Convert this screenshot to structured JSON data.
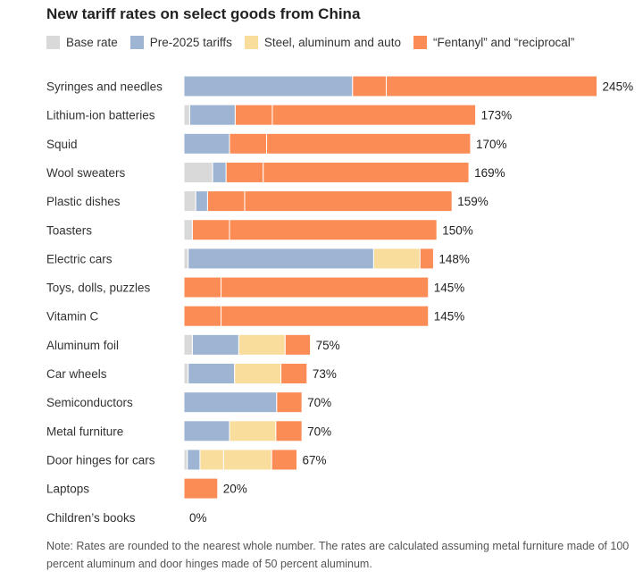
{
  "title": "New tariff rates on select goods from China",
  "legend": [
    {
      "label": "Base rate",
      "color": "#d9d9d9"
    },
    {
      "label": "Pre-2025 tariffs",
      "color": "#9db4d3"
    },
    {
      "label": "Steel, aluminum and auto",
      "color": "#f9dd9c"
    },
    {
      "label": "“Fentanyl” and “reciprocal”",
      "color": "#fb8c56"
    }
  ],
  "note": "Note: Rates are rounded to the nearest whole number. The rates are calculated assuming metal furniture made of 100 percent aluminum and door hinges made of 50 percent aluminum.",
  "chart_data": {
    "type": "bar",
    "orientation": "horizontal",
    "stacked": true,
    "title": "New tariff rates on select goods from China",
    "categories": [
      "Syringes and needles",
      "Lithium-ion batteries",
      "Squid",
      "Wool sweaters",
      "Plastic dishes",
      "Toasters",
      "Electric cars",
      "Toys, dolls, puzzles",
      "Vitamin C",
      "Aluminum foil",
      "Car wheels",
      "Semiconductors",
      "Metal furniture",
      "Door hinges for cars",
      "Laptops",
      "Children’s books"
    ],
    "totals": [
      "245%",
      "173%",
      "170%",
      "169%",
      "159%",
      "150%",
      "148%",
      "145%",
      "145%",
      "75%",
      "73%",
      "70%",
      "70%",
      "67%",
      "20%",
      "0%"
    ],
    "series": [
      {
        "name": "Base rate",
        "color": "#d9d9d9",
        "values": [
          0,
          3.4,
          0,
          17,
          7,
          5,
          2.5,
          0,
          0,
          5,
          2.5,
          0,
          0,
          2,
          0,
          0
        ]
      },
      {
        "name": "Pre-2025 tariffs",
        "color": "#9db4d3",
        "values": [
          100,
          27,
          27,
          8,
          7,
          0,
          110,
          0,
          0,
          27.5,
          27.5,
          55,
          27,
          7.5,
          0,
          0
        ]
      },
      {
        "name": "Steel, aluminum and auto",
        "color": "#f9dd9c",
        "values": [
          0,
          0,
          0,
          0,
          0,
          0,
          27.5,
          0,
          0,
          27.5,
          27.5,
          0,
          27.5,
          42.5,
          0,
          0
        ]
      },
      {
        "name": "“Fentanyl” and “reciprocal”",
        "color": "#fb8c56",
        "values": [
          145,
          142.6,
          143,
          144,
          145,
          145,
          8,
          145,
          145,
          15,
          15.5,
          15,
          15.5,
          15,
          20,
          0
        ]
      }
    ],
    "segments": [
      [
        [
          2,
          100
        ],
        [
          4,
          20
        ],
        [
          4,
          125
        ]
      ],
      [
        [
          1,
          3.4
        ],
        [
          2,
          27
        ],
        [
          4,
          22
        ],
        [
          4,
          120.6
        ]
      ],
      [
        [
          2,
          27
        ],
        [
          4,
          22
        ],
        [
          4,
          121
        ]
      ],
      [
        [
          1,
          17
        ],
        [
          2,
          8
        ],
        [
          4,
          22
        ],
        [
          4,
          122
        ]
      ],
      [
        [
          1,
          7
        ],
        [
          2,
          7
        ],
        [
          4,
          22
        ],
        [
          4,
          123
        ]
      ],
      [
        [
          1,
          5
        ],
        [
          4,
          22
        ],
        [
          4,
          123
        ]
      ],
      [
        [
          1,
          2.5
        ],
        [
          2,
          110
        ],
        [
          3,
          27.5
        ],
        [
          4,
          8
        ]
      ],
      [
        [
          4,
          22
        ],
        [
          4,
          123
        ]
      ],
      [
        [
          4,
          22
        ],
        [
          4,
          123
        ]
      ],
      [
        [
          1,
          5
        ],
        [
          2,
          27.5
        ],
        [
          3,
          27.5
        ],
        [
          4,
          15
        ]
      ],
      [
        [
          1,
          2.5
        ],
        [
          2,
          27.5
        ],
        [
          3,
          27.5
        ],
        [
          4,
          15.5
        ]
      ],
      [
        [
          2,
          55
        ],
        [
          4,
          15
        ]
      ],
      [
        [
          2,
          27
        ],
        [
          3,
          27.5
        ],
        [
          4,
          15.5
        ]
      ],
      [
        [
          1,
          2
        ],
        [
          2,
          7.5
        ],
        [
          3,
          14
        ],
        [
          3,
          28.5
        ],
        [
          4,
          15
        ]
      ],
      [
        [
          4,
          20
        ]
      ],
      []
    ],
    "xlim": [
      0,
      245
    ],
    "grid": false,
    "legend_position": "top-left"
  }
}
